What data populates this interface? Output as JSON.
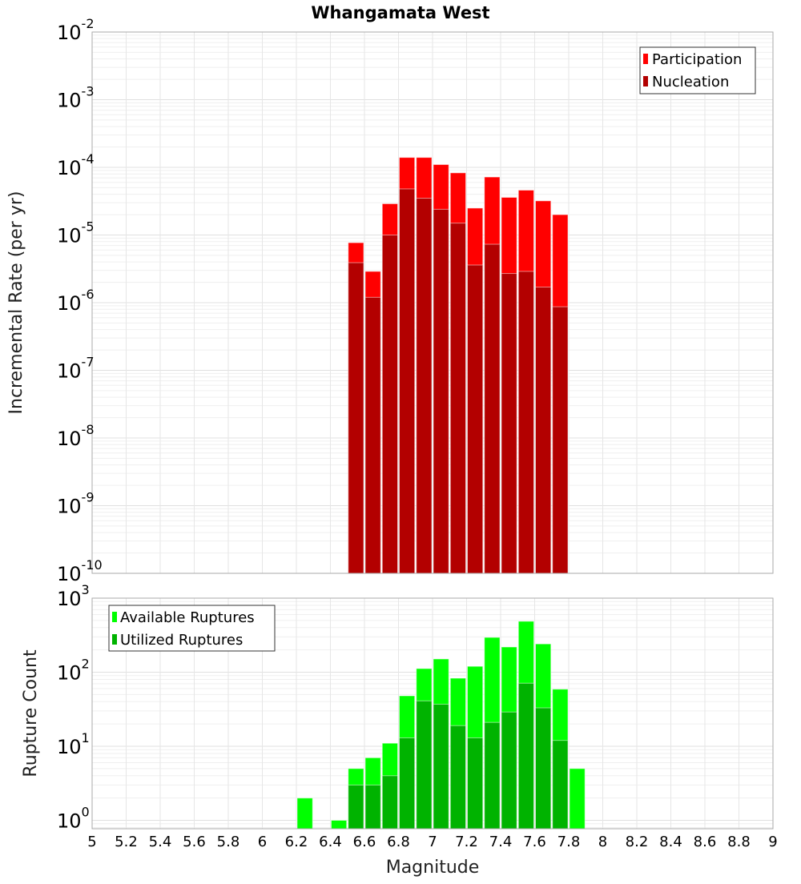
{
  "chart_data": [
    {
      "type": "bar",
      "title": "Whangamata West",
      "xlabel": "",
      "ylabel": "Incremental Rate (per yr)",
      "yscale": "log",
      "xlim": [
        5,
        9
      ],
      "ylim": [
        1e-10,
        0.01
      ],
      "y_tick_exponents": [
        -10,
        -9,
        -8,
        -7,
        -6,
        -5,
        -4,
        -3,
        -2
      ],
      "bin_width": 0.1,
      "x": [
        6.55,
        6.65,
        6.75,
        6.85,
        6.95,
        7.05,
        7.15,
        7.25,
        7.35,
        7.45,
        7.55,
        7.65,
        7.75
      ],
      "series": [
        {
          "name": "Participation",
          "color": "#ff0000",
          "values": [
            7.7e-06,
            2.9e-06,
            2.9e-05,
            0.00014,
            0.00014,
            0.00011,
            8.3e-05,
            2.5e-05,
            7.2e-05,
            3.6e-05,
            4.6e-05,
            3.2e-05,
            2e-05
          ]
        },
        {
          "name": "Nucleation",
          "color": "#b30000",
          "values": [
            3.9e-06,
            1.2e-06,
            1e-05,
            4.8e-05,
            3.5e-05,
            2.4e-05,
            1.5e-05,
            3.6e-06,
            7.3e-06,
            2.7e-06,
            2.9e-06,
            1.7e-06,
            8.7e-07
          ]
        }
      ],
      "legend": "top-right",
      "grid": true
    },
    {
      "type": "bar",
      "title": "",
      "xlabel": "Magnitude",
      "ylabel": "Rupture Count",
      "yscale": "log",
      "xlim": [
        5,
        9
      ],
      "ylim": [
        0.77,
        1000
      ],
      "y_tick_exponents": [
        0,
        1,
        2,
        3
      ],
      "x_ticks": [
        "5",
        "5.2",
        "5.4",
        "5.6",
        "5.8",
        "6",
        "6.2",
        "6.4",
        "6.6",
        "6.8",
        "7",
        "7.2",
        "7.4",
        "7.6",
        "7.8",
        "8",
        "8.2",
        "8.4",
        "8.6",
        "8.8",
        "9"
      ],
      "bin_width": 0.1,
      "x": [
        6.25,
        6.45,
        6.55,
        6.65,
        6.75,
        6.85,
        6.95,
        7.05,
        7.15,
        7.25,
        7.35,
        7.45,
        7.55,
        7.65,
        7.75,
        7.85
      ],
      "series": [
        {
          "name": "Available Ruptures",
          "color": "#00ff00",
          "values": [
            2,
            1,
            5,
            7,
            11,
            48,
            112,
            151,
            83,
            120,
            295,
            219,
            487,
            241,
            59,
            5
          ]
        },
        {
          "name": "Utilized Ruptures",
          "color": "#00b300",
          "values": [
            0,
            0,
            3,
            3,
            4,
            13,
            41,
            37,
            19,
            13,
            21,
            29,
            71,
            33,
            12,
            0
          ]
        }
      ],
      "legend": "top-left",
      "grid": true
    }
  ]
}
